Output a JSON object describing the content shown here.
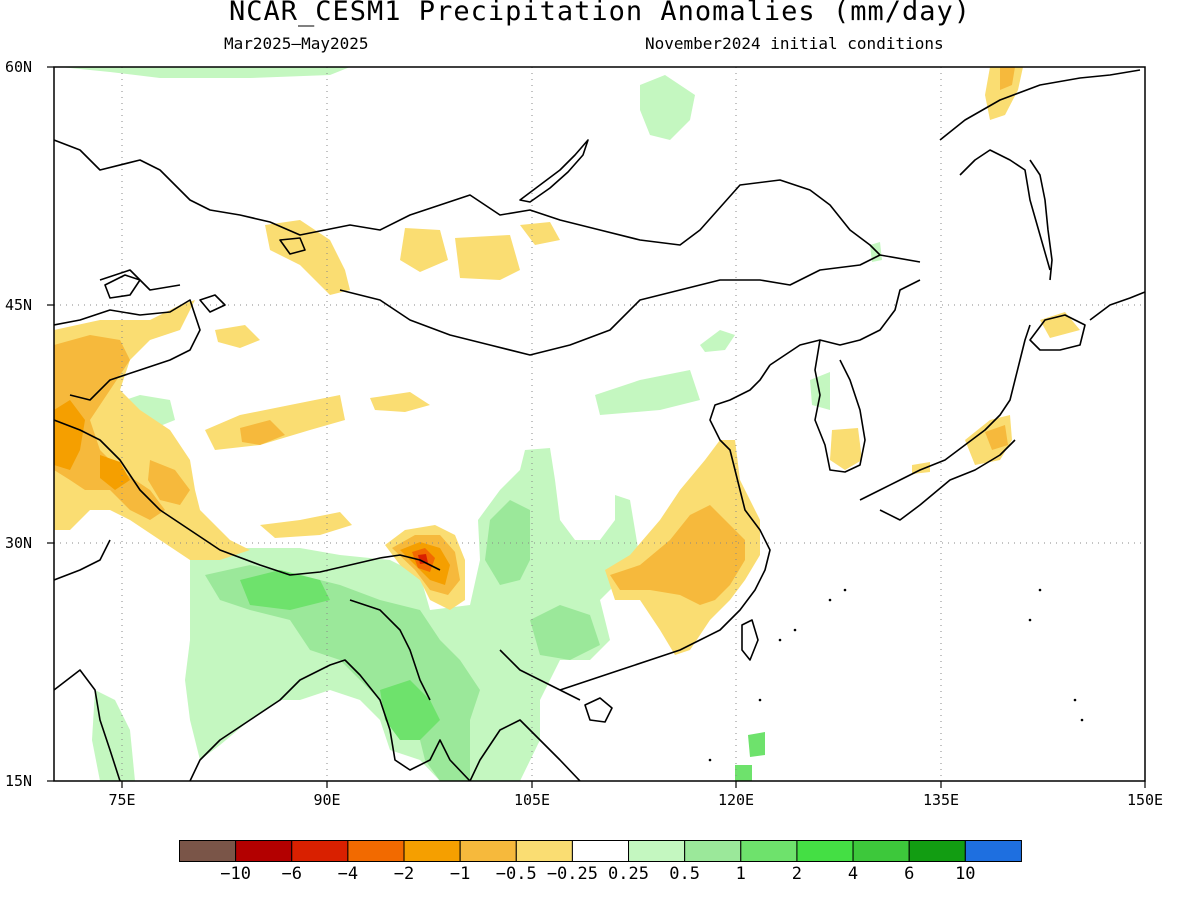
{
  "title": "NCAR_CESM1 Precipitation Anomalies (mm/day)",
  "subtitle_left": "Mar2025–May2025",
  "subtitle_right": "November2024 initial conditions",
  "map": {
    "lon_range": [
      70,
      150
    ],
    "lat_range": [
      15,
      60
    ],
    "lat_labels": [
      "60N",
      "45N",
      "30N",
      "15N"
    ],
    "lon_labels": [
      "75E",
      "90E",
      "105E",
      "120E",
      "135E",
      "150E"
    ],
    "grid": "dotted"
  },
  "legend": {
    "colors": [
      "#7a5548",
      "#b30000",
      "#d92000",
      "#f26a00",
      "#f59f00",
      "#f6b93c",
      "#fadd72",
      "#ffffff",
      "#c4f7c0",
      "#9be89a",
      "#6ee26c",
      "#44df44",
      "#3dc83b",
      "#129d12",
      "#1e6fe0"
    ],
    "labels": [
      "−10",
      "−6",
      "−4",
      "−2",
      "−1",
      "−0.5",
      "−0.25",
      "0.25",
      "0.5",
      "1",
      "2",
      "4",
      "6",
      "10"
    ]
  }
}
